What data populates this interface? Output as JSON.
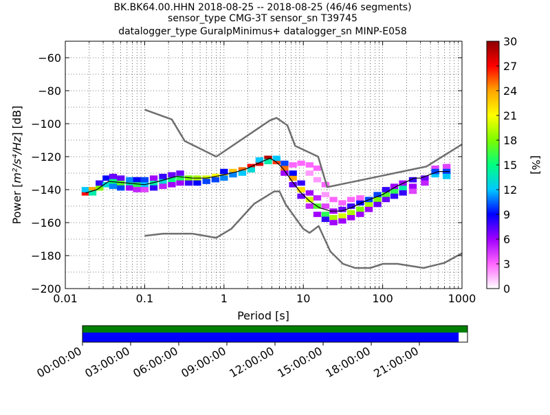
{
  "chart_data": {
    "type": "heatmap",
    "title_lines": [
      "BK.BK64.00.HHN   2018-08-25 -- 2018-08-25  (46/46 segments)",
      "sensor_type CMG-3T sensor_sn T39745",
      "datalogger_type GuralpMinimus+ datalogger_sn MINP-E058"
    ],
    "xlabel": "Period [s]",
    "ylabel_prefix": "Power [",
    "ylabel_math": "m²/s⁴/Hz",
    "ylabel_suffix": "] [dB]",
    "xscale": "log",
    "xlim": [
      0.01,
      1000
    ],
    "ylim": [
      -200,
      -50
    ],
    "x_ticks": [
      0.01,
      0.1,
      1,
      10,
      100,
      1000
    ],
    "x_tick_labels": [
      "0.01",
      "0.1",
      "1",
      "10",
      "100",
      "1000"
    ],
    "y_ticks": [
      -200,
      -180,
      -160,
      -140,
      -120,
      -100,
      -80,
      -60
    ],
    "y_tick_labels": [
      "−200",
      "−180",
      "−160",
      "−140",
      "−120",
      "−100",
      "−80",
      "−60"
    ],
    "colorbar": {
      "label": "[%]",
      "range": [
        0,
        30
      ],
      "ticks": [
        0,
        3,
        6,
        9,
        12,
        15,
        18,
        21,
        24,
        27,
        30
      ],
      "tick_labels": [
        "0",
        "3",
        "6",
        "9",
        "12",
        "15",
        "18",
        "21",
        "24",
        "27",
        "30"
      ],
      "colormap_stops": [
        "#ffffff",
        "#ff66ff",
        "#a000ff",
        "#0000ff",
        "#00c8ff",
        "#00ff80",
        "#7cfc00",
        "#ffff00",
        "#ffa500",
        "#ff0000",
        "#8b0000"
      ]
    },
    "noise_model_high": {
      "name": "NHNM",
      "color": "#6e6e6e",
      "period": [
        0.1,
        0.22,
        0.32,
        0.8,
        3.8,
        4.6,
        6.3,
        7.9,
        15.4,
        20,
        354.8,
        1000
      ],
      "power": [
        -91.5,
        -97.4,
        -110.5,
        -120,
        -98,
        -96.5,
        -101,
        -113.5,
        -120,
        -138.5,
        -126,
        -112.5
      ]
    },
    "noise_model_low": {
      "name": "NLNM",
      "color": "#6e6e6e",
      "period": [
        0.1,
        0.17,
        0.4,
        0.8,
        1.24,
        2.4,
        4.3,
        5.0,
        6.0,
        10,
        12,
        15.6,
        21.9,
        31.6,
        45,
        70,
        101,
        154,
        328,
        600,
        1000
      ],
      "power": [
        -168,
        -166.7,
        -166.7,
        -169.2,
        -163.7,
        -148.6,
        -141.1,
        -141.1,
        -149,
        -163.8,
        -166.2,
        -162.1,
        -177.5,
        -185,
        -187.5,
        -187.5,
        -185,
        -185,
        -187.5,
        -184.4,
        -178.6
      ]
    },
    "mean_curve": {
      "color": "#000000",
      "period": [
        0.018,
        0.025,
        0.035,
        0.06,
        0.1,
        0.15,
        0.25,
        0.4,
        0.6,
        1,
        1.5,
        2,
        3,
        3.8,
        4.5,
        5.5,
        7,
        9,
        12,
        16,
        22,
        30,
        40,
        60,
        100,
        150,
        250,
        300,
        500,
        700
      ],
      "power": [
        -142,
        -140,
        -135,
        -136,
        -137,
        -135,
        -132,
        -133,
        -133,
        -131,
        -129,
        -127,
        -123,
        -121,
        -123,
        -127,
        -134,
        -141,
        -147,
        -151,
        -153,
        -153,
        -151,
        -147,
        -143,
        -138,
        -133,
        -133,
        -129,
        -129
      ]
    },
    "psd_density": {
      "description_bands": "value = percent of segments in cell",
      "cells": [
        {
          "x": 0.018,
          "y": -142,
          "pct": 27
        },
        {
          "x": 0.018,
          "y": -140,
          "pct": 12
        },
        {
          "x": 0.022,
          "y": -140,
          "pct": 24
        },
        {
          "x": 0.022,
          "y": -142,
          "pct": 14
        },
        {
          "x": 0.027,
          "y": -139,
          "pct": 18
        },
        {
          "x": 0.027,
          "y": -136,
          "pct": 8
        },
        {
          "x": 0.033,
          "y": -137,
          "pct": 13
        },
        {
          "x": 0.033,
          "y": -133,
          "pct": 9
        },
        {
          "x": 0.04,
          "y": -135,
          "pct": 15
        },
        {
          "x": 0.04,
          "y": -138,
          "pct": 11
        },
        {
          "x": 0.04,
          "y": -132,
          "pct": 7
        },
        {
          "x": 0.05,
          "y": -136,
          "pct": 17
        },
        {
          "x": 0.05,
          "y": -139,
          "pct": 10
        },
        {
          "x": 0.05,
          "y": -133,
          "pct": 7
        },
        {
          "x": 0.065,
          "y": -137,
          "pct": 14
        },
        {
          "x": 0.065,
          "y": -134,
          "pct": 11
        },
        {
          "x": 0.065,
          "y": -139,
          "pct": 6
        },
        {
          "x": 0.08,
          "y": -137,
          "pct": 16
        },
        {
          "x": 0.08,
          "y": -134,
          "pct": 9
        },
        {
          "x": 0.08,
          "y": -140,
          "pct": 5
        },
        {
          "x": 0.1,
          "y": -137,
          "pct": 12
        },
        {
          "x": 0.1,
          "y": -134,
          "pct": 10
        },
        {
          "x": 0.1,
          "y": -140,
          "pct": 4
        },
        {
          "x": 0.13,
          "y": -136,
          "pct": 14
        },
        {
          "x": 0.13,
          "y": -139,
          "pct": 8
        },
        {
          "x": 0.13,
          "y": -133,
          "pct": 6
        },
        {
          "x": 0.17,
          "y": -135,
          "pct": 13
        },
        {
          "x": 0.17,
          "y": -132,
          "pct": 8
        },
        {
          "x": 0.17,
          "y": -138,
          "pct": 5
        },
        {
          "x": 0.22,
          "y": -134,
          "pct": 15
        },
        {
          "x": 0.22,
          "y": -131,
          "pct": 7
        },
        {
          "x": 0.22,
          "y": -137,
          "pct": 6
        },
        {
          "x": 0.28,
          "y": -133,
          "pct": 16
        },
        {
          "x": 0.28,
          "y": -130,
          "pct": 7
        },
        {
          "x": 0.28,
          "y": -136,
          "pct": 6
        },
        {
          "x": 0.36,
          "y": -133,
          "pct": 18
        },
        {
          "x": 0.36,
          "y": -136,
          "pct": 8
        },
        {
          "x": 0.46,
          "y": -133,
          "pct": 19
        },
        {
          "x": 0.46,
          "y": -136,
          "pct": 9
        },
        {
          "x": 0.6,
          "y": -133,
          "pct": 20
        },
        {
          "x": 0.6,
          "y": -135,
          "pct": 10
        },
        {
          "x": 0.78,
          "y": -132,
          "pct": 21
        },
        {
          "x": 0.78,
          "y": -134,
          "pct": 10
        },
        {
          "x": 1.0,
          "y": -131,
          "pct": 22
        },
        {
          "x": 1.0,
          "y": -133,
          "pct": 11
        },
        {
          "x": 1.0,
          "y": -129,
          "pct": 9
        },
        {
          "x": 1.3,
          "y": -129,
          "pct": 23
        },
        {
          "x": 1.3,
          "y": -131,
          "pct": 11
        },
        {
          "x": 1.7,
          "y": -128,
          "pct": 25
        },
        {
          "x": 1.7,
          "y": -130,
          "pct": 12
        },
        {
          "x": 2.2,
          "y": -126,
          "pct": 27
        },
        {
          "x": 2.2,
          "y": -128,
          "pct": 13
        },
        {
          "x": 2.8,
          "y": -124,
          "pct": 28
        },
        {
          "x": 2.8,
          "y": -122,
          "pct": 12
        },
        {
          "x": 3.6,
          "y": -121,
          "pct": 29
        },
        {
          "x": 3.6,
          "y": -123,
          "pct": 14
        },
        {
          "x": 4.6,
          "y": -123,
          "pct": 26
        },
        {
          "x": 4.6,
          "y": -121,
          "pct": 12
        },
        {
          "x": 5.8,
          "y": -127,
          "pct": 25
        },
        {
          "x": 5.8,
          "y": -124,
          "pct": 10
        },
        {
          "x": 5.8,
          "y": -130,
          "pct": 6
        },
        {
          "x": 7.4,
          "y": -133,
          "pct": 24
        },
        {
          "x": 7.4,
          "y": -130,
          "pct": 9
        },
        {
          "x": 7.4,
          "y": -137,
          "pct": 7
        },
        {
          "x": 7.4,
          "y": -125,
          "pct": 3
        },
        {
          "x": 9.4,
          "y": -140,
          "pct": 22
        },
        {
          "x": 9.4,
          "y": -136,
          "pct": 8
        },
        {
          "x": 9.4,
          "y": -144,
          "pct": 7
        },
        {
          "x": 9.4,
          "y": -124,
          "pct": 3
        },
        {
          "x": 12,
          "y": -146,
          "pct": 20
        },
        {
          "x": 12,
          "y": -142,
          "pct": 6
        },
        {
          "x": 12,
          "y": -150,
          "pct": 5
        },
        {
          "x": 12,
          "y": -125,
          "pct": 3
        },
        {
          "x": 12,
          "y": -130,
          "pct": 2
        },
        {
          "x": 15,
          "y": -150,
          "pct": 17
        },
        {
          "x": 15,
          "y": -155,
          "pct": 6
        },
        {
          "x": 15,
          "y": -145,
          "pct": 5
        },
        {
          "x": 15,
          "y": -127,
          "pct": 3
        },
        {
          "x": 15,
          "y": -134,
          "pct": 2
        },
        {
          "x": 19,
          "y": -155,
          "pct": 16
        },
        {
          "x": 19,
          "y": -158,
          "pct": 8
        },
        {
          "x": 19,
          "y": -150,
          "pct": 4
        },
        {
          "x": 19,
          "y": -137,
          "pct": 3
        },
        {
          "x": 19,
          "y": -143,
          "pct": 2
        },
        {
          "x": 24,
          "y": -157,
          "pct": 19
        },
        {
          "x": 24,
          "y": -153,
          "pct": 6
        },
        {
          "x": 24,
          "y": -160,
          "pct": 6
        },
        {
          "x": 24,
          "y": -146,
          "pct": 3
        },
        {
          "x": 31,
          "y": -156,
          "pct": 20
        },
        {
          "x": 31,
          "y": -152,
          "pct": 7
        },
        {
          "x": 31,
          "y": -159,
          "pct": 6
        },
        {
          "x": 31,
          "y": -148,
          "pct": 3
        },
        {
          "x": 40,
          "y": -154,
          "pct": 19
        },
        {
          "x": 40,
          "y": -150,
          "pct": 8
        },
        {
          "x": 40,
          "y": -157,
          "pct": 6
        },
        {
          "x": 40,
          "y": -146,
          "pct": 3
        },
        {
          "x": 52,
          "y": -152,
          "pct": 18
        },
        {
          "x": 52,
          "y": -148,
          "pct": 9
        },
        {
          "x": 52,
          "y": -155,
          "pct": 6
        },
        {
          "x": 52,
          "y": -145,
          "pct": 3
        },
        {
          "x": 67,
          "y": -149,
          "pct": 19
        },
        {
          "x": 67,
          "y": -146,
          "pct": 10
        },
        {
          "x": 67,
          "y": -152,
          "pct": 6
        },
        {
          "x": 86,
          "y": -146,
          "pct": 18
        },
        {
          "x": 86,
          "y": -143,
          "pct": 10
        },
        {
          "x": 86,
          "y": -149,
          "pct": 7
        },
        {
          "x": 110,
          "y": -143,
          "pct": 17
        },
        {
          "x": 110,
          "y": -140,
          "pct": 8
        },
        {
          "x": 110,
          "y": -146,
          "pct": 7
        },
        {
          "x": 140,
          "y": -141,
          "pct": 16
        },
        {
          "x": 140,
          "y": -144,
          "pct": 8
        },
        {
          "x": 140,
          "y": -138,
          "pct": 6
        },
        {
          "x": 180,
          "y": -139,
          "pct": 14
        },
        {
          "x": 180,
          "y": -142,
          "pct": 8
        },
        {
          "x": 180,
          "y": -136,
          "pct": 6
        },
        {
          "x": 240,
          "y": -134,
          "pct": 8
        },
        {
          "x": 240,
          "y": -138,
          "pct": 6
        },
        {
          "x": 240,
          "y": -141,
          "pct": 4
        },
        {
          "x": 340,
          "y": -133,
          "pct": 7
        },
        {
          "x": 340,
          "y": -136,
          "pct": 5
        },
        {
          "x": 460,
          "y": -127,
          "pct": 4
        },
        {
          "x": 460,
          "y": -131,
          "pct": 12
        },
        {
          "x": 460,
          "y": -129,
          "pct": 10
        },
        {
          "x": 640,
          "y": -126,
          "pct": 4
        },
        {
          "x": 640,
          "y": -129,
          "pct": 10
        },
        {
          "x": 640,
          "y": -132,
          "pct": 12
        }
      ]
    },
    "coverage_bar": {
      "time_labels": [
        "00:00:00",
        "03:00:00",
        "06:00:00",
        "09:00:00",
        "12:00:00",
        "15:00:00",
        "18:00:00",
        "21:00:00"
      ],
      "data_color": "#008000",
      "psd_color": "#0000ff",
      "data_coverage_fraction": 1.0,
      "psd_coverage_fraction": 0.977
    }
  }
}
